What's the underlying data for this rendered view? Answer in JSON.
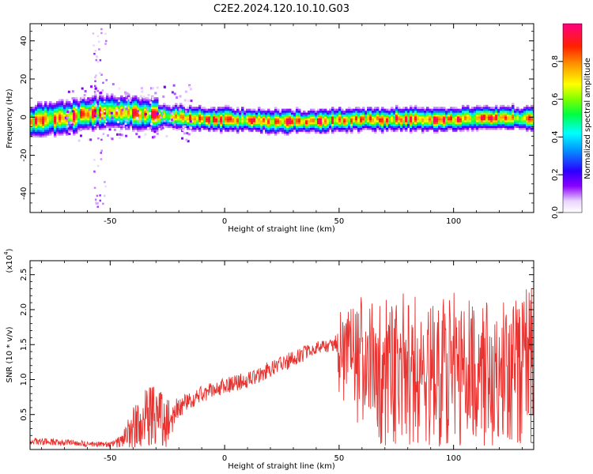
{
  "figure": {
    "title": "C2E2.2024.120.10.10.G03"
  },
  "chart_data": [
    {
      "type": "heatmap",
      "xlabel": "Height of straight line (km)",
      "ylabel": "Frequency (Hz)",
      "xlim": [
        -85,
        135
      ],
      "ylim": [
        -50,
        49
      ],
      "xticks": [
        -50,
        0,
        50,
        100
      ],
      "yticks": [
        -40,
        -20,
        0,
        20,
        40
      ],
      "ridge_profile": {
        "x": [
          -85,
          -70,
          -60,
          -50,
          -40,
          -30,
          -20,
          -10,
          0,
          20,
          40,
          60,
          80,
          100,
          120,
          135
        ],
        "freq": [
          -2,
          0,
          2,
          3,
          2,
          1,
          0,
          -1,
          -1,
          -2,
          -2,
          -1,
          -1,
          -1,
          0,
          -1
        ]
      },
      "colorbar": {
        "label": "Normalized spectral amplitude",
        "ticks": [
          0.0,
          0.2,
          0.4,
          0.6,
          0.8
        ],
        "range": [
          0,
          1
        ],
        "colormap": "rainbow"
      }
    },
    {
      "type": "line",
      "xlabel": "Height of straight line (km)",
      "ylabel": "SNR (10 * v/v)",
      "multiplier_label": "(x10",
      "multiplier_exp": "4",
      "xlim": [
        -85,
        135
      ],
      "ylim": [
        0,
        2.7
      ],
      "xticks": [
        -50,
        0,
        50,
        100
      ],
      "yticks": [
        0.5,
        1.0,
        1.5,
        2.0,
        2.5
      ],
      "ytick_labels": [
        "0.5",
        "1.0",
        "1.5",
        "2.0",
        "2.5"
      ],
      "line_color": "#e8322f",
      "envelope": {
        "x": [
          -85,
          -70,
          -60,
          -50,
          -45,
          -40,
          -35,
          -30,
          -25,
          -20,
          -15,
          -10,
          -5,
          0,
          10,
          20,
          30,
          40,
          48,
          50,
          60,
          70,
          80,
          90,
          100,
          110,
          120,
          130,
          135
        ],
        "base": [
          0.12,
          0.1,
          0.08,
          0.07,
          0.12,
          0.3,
          0.45,
          0.5,
          0.4,
          0.6,
          0.7,
          0.8,
          0.85,
          0.9,
          1.0,
          1.15,
          1.3,
          1.45,
          1.5,
          1.4,
          1.2,
          1.1,
          1.15,
          1.1,
          1.2,
          1.05,
          1.1,
          1.2,
          1.1
        ],
        "spread": [
          0.05,
          0.05,
          0.04,
          0.04,
          0.1,
          0.3,
          0.4,
          0.45,
          0.4,
          0.15,
          0.12,
          0.12,
          0.12,
          0.12,
          0.12,
          0.12,
          0.12,
          0.1,
          0.08,
          0.6,
          1.0,
          1.1,
          1.1,
          1.1,
          1.1,
          1.1,
          1.15,
          1.2,
          1.2
        ]
      }
    }
  ]
}
